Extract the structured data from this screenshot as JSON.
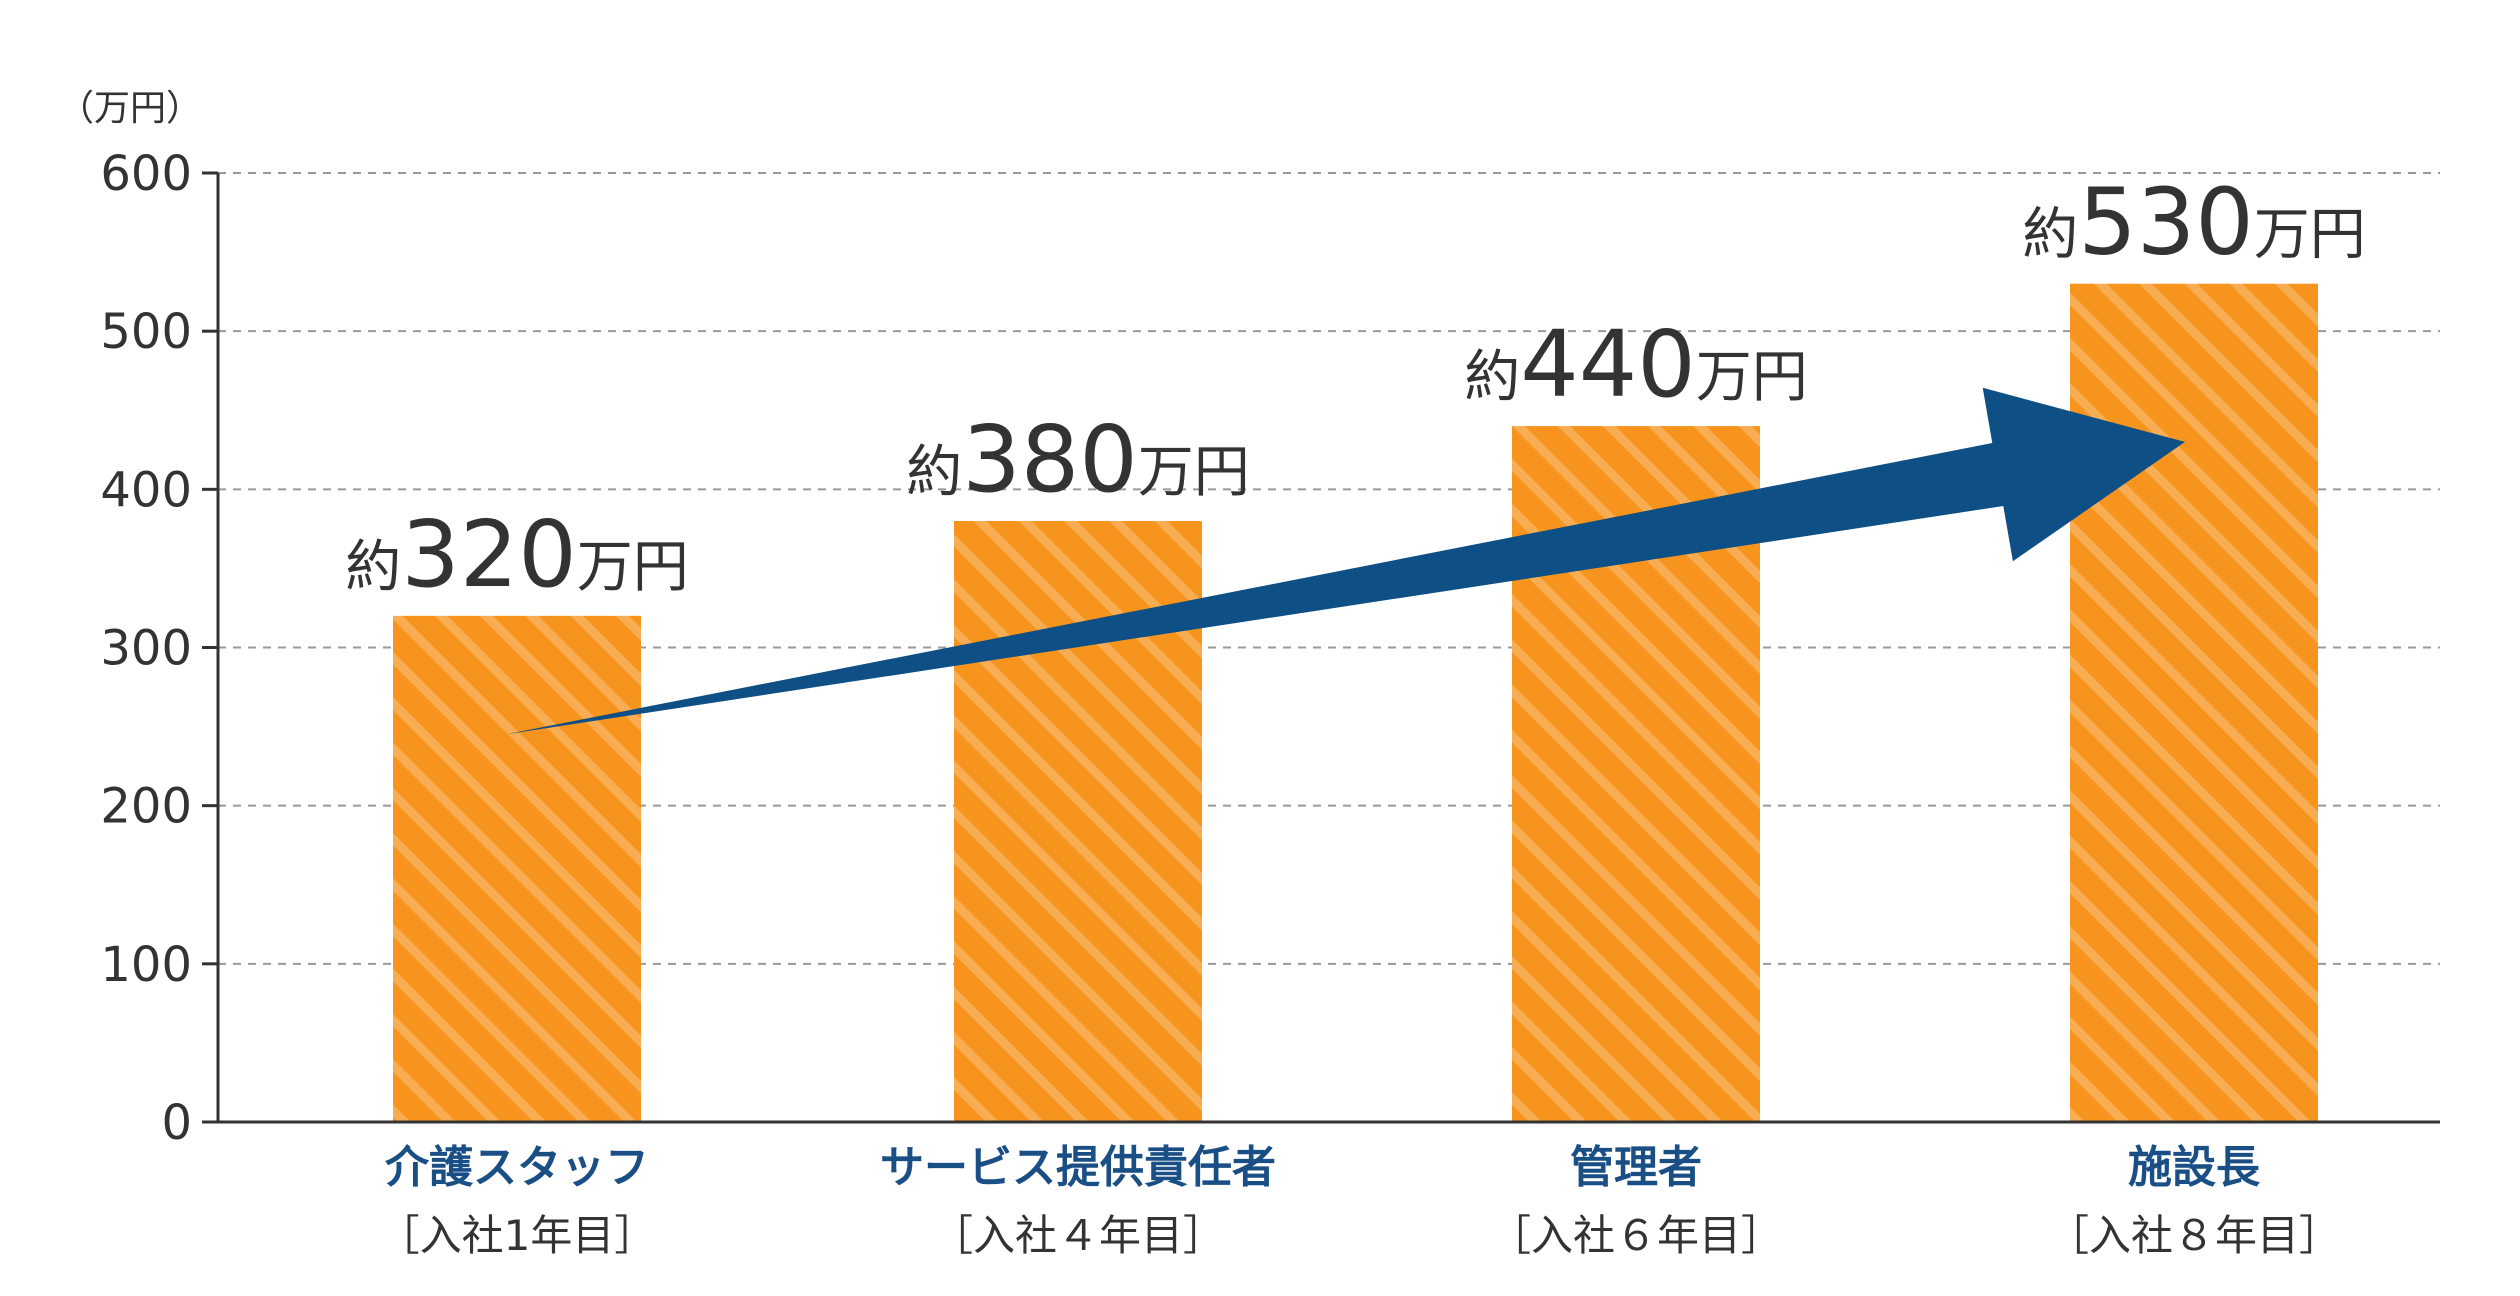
{
  "chart_data": {
    "type": "bar",
    "unit": "（万円）",
    "yticks": [
      "0",
      "100",
      "200",
      "300",
      "400",
      "500",
      "600"
    ],
    "ylim": [
      0,
      600
    ],
    "grid": true,
    "categories": [
      "介護スタッフ",
      "サービス提供責任者",
      "管理者",
      "施設長"
    ],
    "category_sublabels": [
      "［入社1年目］",
      "［入社４年目］",
      "［入社６年目］",
      "［入社８年目］"
    ],
    "values": [
      320,
      380,
      440,
      530
    ],
    "value_labels": [
      {
        "prefix": "約",
        "number": "320",
        "suffix": "万円"
      },
      {
        "prefix": "約",
        "number": "380",
        "suffix": "万円"
      },
      {
        "prefix": "約",
        "number": "440",
        "suffix": "万円"
      },
      {
        "prefix": "約",
        "number": "530",
        "suffix": "万円"
      }
    ],
    "trend_arrow": {
      "from_value": 245,
      "to_value": 430
    },
    "colors": {
      "bar": "#f7941d",
      "bar_stripe": "#f9ad52",
      "arrow": "#0e4f86",
      "axis": "#333333",
      "grid": "#999999",
      "category_text": "#1a4f86"
    }
  }
}
